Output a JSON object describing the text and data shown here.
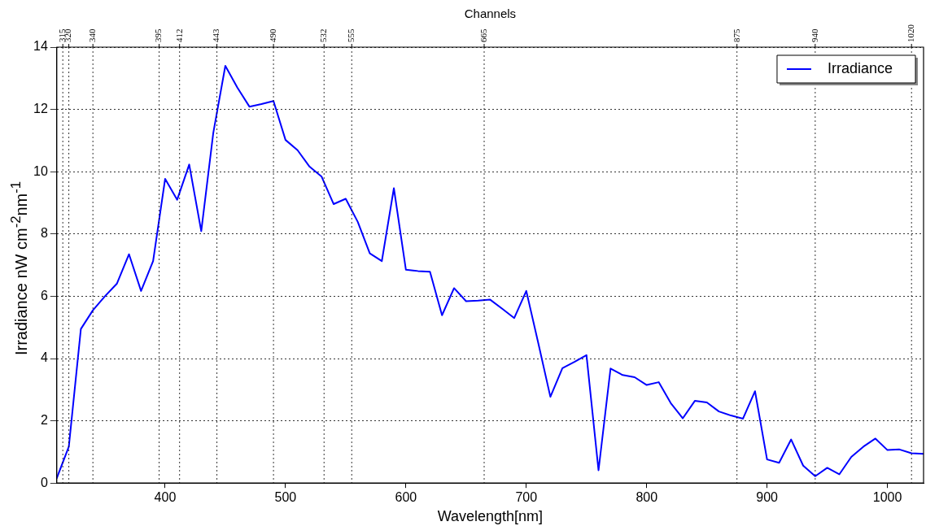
{
  "chart_data": {
    "type": "line",
    "xlabel": "Wavelength[nm]",
    "ylabel": "Irradiance nW cm$^{-2}$nm$^{-1}$",
    "x2label": "Channels",
    "x": [
      310,
      320,
      330,
      340,
      350,
      360,
      370,
      380,
      390,
      400,
      410,
      420,
      430,
      440,
      450,
      460,
      470,
      480,
      490,
      500,
      510,
      520,
      530,
      540,
      550,
      560,
      570,
      580,
      590,
      600,
      610,
      620,
      630,
      640,
      650,
      660,
      670,
      680,
      690,
      700,
      710,
      720,
      730,
      740,
      750,
      760,
      770,
      780,
      790,
      800,
      810,
      820,
      830,
      840,
      850,
      860,
      870,
      880,
      890,
      900,
      910,
      920,
      930,
      940,
      950,
      960,
      970,
      980,
      990,
      1000,
      1010,
      1020,
      1030
    ],
    "series": [
      {
        "name": "Irradiance",
        "color": "#0000ff",
        "values": [
          0.16,
          1.17,
          4.95,
          5.55,
          6.0,
          6.41,
          7.35,
          6.17,
          7.13,
          9.77,
          9.1,
          10.23,
          8.09,
          11.25,
          13.4,
          12.7,
          12.09,
          12.17,
          12.27,
          11.02,
          10.69,
          10.16,
          9.84,
          8.96,
          9.13,
          8.39,
          7.38,
          7.13,
          9.47,
          6.85,
          6.81,
          6.79,
          5.39,
          6.26,
          5.84,
          5.86,
          5.89,
          5.6,
          5.3,
          6.17,
          4.49,
          2.77,
          3.69,
          3.89,
          4.11,
          0.41,
          3.68,
          3.47,
          3.4,
          3.15,
          3.24,
          2.57,
          2.08,
          2.64,
          2.59,
          2.3,
          2.17,
          2.07,
          2.95,
          0.76,
          0.65,
          1.4,
          0.56,
          0.22,
          0.49,
          0.28,
          0.84,
          1.17,
          1.43,
          1.06,
          1.08,
          0.96,
          0.94
        ]
      }
    ],
    "xlim": [
      310,
      1030
    ],
    "xticks": [
      400,
      500,
      600,
      700,
      800,
      900,
      1000
    ],
    "x2lim": [
      310,
      1030
    ],
    "x2ticks": [
      315,
      320,
      340,
      395,
      412,
      443,
      490,
      532,
      555,
      665,
      875,
      940,
      1020
    ],
    "ylim": [
      0,
      14
    ],
    "yticks": [
      0,
      2,
      4,
      6,
      8,
      10,
      12,
      14
    ],
    "grid": true,
    "legend": "top right",
    "marker": "none",
    "line_style": "solid"
  }
}
